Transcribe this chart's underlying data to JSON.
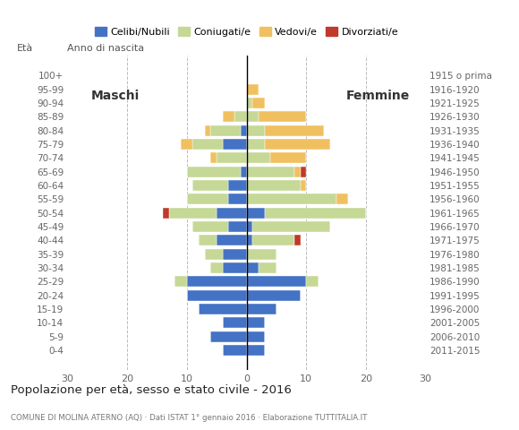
{
  "age_groups": [
    "0-4",
    "5-9",
    "10-14",
    "15-19",
    "20-24",
    "25-29",
    "30-34",
    "35-39",
    "40-44",
    "45-49",
    "50-54",
    "55-59",
    "60-64",
    "65-69",
    "70-74",
    "75-79",
    "80-84",
    "85-89",
    "90-94",
    "95-99",
    "100+"
  ],
  "birth_years": [
    "2011-2015",
    "2006-2010",
    "2001-2005",
    "1996-2000",
    "1991-1995",
    "1986-1990",
    "1981-1985",
    "1976-1980",
    "1971-1975",
    "1966-1970",
    "1961-1965",
    "1956-1960",
    "1951-1955",
    "1946-1950",
    "1941-1945",
    "1936-1940",
    "1931-1935",
    "1926-1930",
    "1921-1925",
    "1916-1920",
    "1915 o prima"
  ],
  "colors": {
    "celibi": "#4472c4",
    "coniugati": "#c5d896",
    "vedovi": "#f0c060",
    "divorziati": "#c0392b"
  },
  "males": {
    "celibi": [
      4,
      6,
      4,
      8,
      10,
      10,
      4,
      4,
      5,
      3,
      5,
      3,
      3,
      1,
      0,
      4,
      1,
      0,
      0,
      0,
      0
    ],
    "coniugati": [
      0,
      0,
      0,
      0,
      0,
      2,
      2,
      3,
      3,
      6,
      8,
      7,
      6,
      9,
      5,
      5,
      5,
      2,
      0,
      0,
      0
    ],
    "vedovi": [
      0,
      0,
      0,
      0,
      0,
      0,
      0,
      0,
      0,
      0,
      0,
      0,
      0,
      0,
      1,
      2,
      1,
      2,
      0,
      0,
      0
    ],
    "divorziati": [
      0,
      0,
      0,
      0,
      0,
      0,
      0,
      0,
      0,
      0,
      1,
      0,
      0,
      0,
      0,
      0,
      0,
      0,
      0,
      0,
      0
    ]
  },
  "females": {
    "celibi": [
      3,
      3,
      3,
      5,
      9,
      10,
      2,
      0,
      1,
      1,
      3,
      0,
      0,
      0,
      0,
      0,
      0,
      0,
      0,
      0,
      0
    ],
    "coniugati": [
      0,
      0,
      0,
      0,
      0,
      2,
      3,
      5,
      7,
      13,
      17,
      15,
      9,
      8,
      4,
      3,
      3,
      2,
      1,
      0,
      0
    ],
    "vedovi": [
      0,
      0,
      0,
      0,
      0,
      0,
      0,
      0,
      0,
      0,
      0,
      2,
      1,
      1,
      6,
      11,
      10,
      8,
      2,
      2,
      0
    ],
    "divorziati": [
      0,
      0,
      0,
      0,
      0,
      0,
      0,
      0,
      1,
      0,
      0,
      0,
      0,
      1,
      0,
      0,
      0,
      0,
      0,
      0,
      0
    ]
  },
  "title": "Popolazione per età, sesso e stato civile - 2016",
  "subtitle": "COMUNE DI MOLINA ATERNO (AQ) · Dati ISTAT 1° gennaio 2016 · Elaborazione TUTTITALIA.IT",
  "maschi_label": "Maschi",
  "femmine_label": "Femmine",
  "eta_label": "Età",
  "anno_label": "Anno di nascita",
  "xlim": 30,
  "legend_labels": [
    "Celibi/Nubili",
    "Coniugati/e",
    "Vedovi/e",
    "Divorziati/e"
  ],
  "background_color": "#ffffff",
  "xticks": [
    30,
    20,
    10,
    0,
    10,
    20,
    30
  ]
}
